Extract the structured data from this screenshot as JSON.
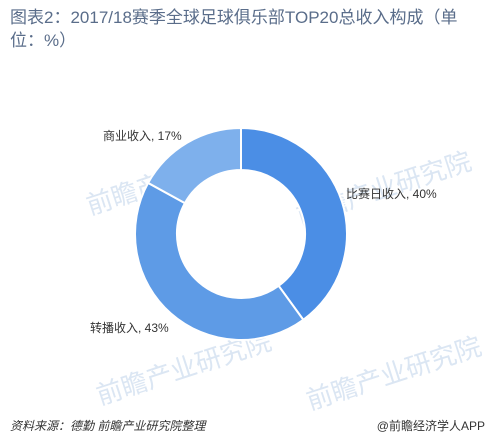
{
  "title": "图表2：2017/18赛季全球足球俱乐部TOP20总收入构成（单位：%）",
  "watermark": "前瞻产业研究院",
  "source": "资料来源：德勤 前瞻产业研究院整理",
  "brand": "@前瞻经济学人APP",
  "colors": {
    "slice_0": "#4b8ee5",
    "slice_1": "#5e9be6",
    "slice_2": "#7eb0ec"
  },
  "chart_data": {
    "type": "pie",
    "donut": true,
    "title": "图表2：2017/18赛季全球足球俱乐部TOP20总收入构成（单位：%）",
    "slices": [
      {
        "name": "比赛日收入",
        "value": 40,
        "label": "比赛日收入, 40%"
      },
      {
        "name": "转播收入",
        "value": 43,
        "label": "转播收入, 43%"
      },
      {
        "name": "商业收入",
        "value": 17,
        "label": "商业收入, 17%"
      }
    ]
  }
}
